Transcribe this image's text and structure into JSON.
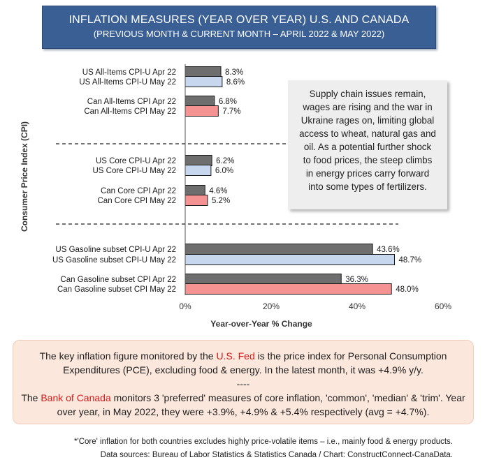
{
  "header": {
    "title": "INFLATION MEASURES (YEAR OVER YEAR) U.S. AND CANADA",
    "subtitle": "(PREVIOUS MONTH & CURRENT MONTH – APRIL 2022 & MAY 2022)"
  },
  "colors": {
    "apr": "#6e6e6e",
    "us_may": "#c7d7ee",
    "can_may": "#f59393"
  },
  "chart_data": {
    "type": "bar",
    "orientation": "horizontal",
    "xlabel": "Year-over-Year % Change",
    "ylabel": "Consumer Price Index (CPI)",
    "xlim": [
      0,
      60
    ],
    "xticks": [
      "0%",
      "20%",
      "40%",
      "60%"
    ],
    "grid": false,
    "categories": [
      "US All-Items CPI-U Apr 22",
      "US All-Items CPI-U May 22",
      "Can All-Items CPI Apr 22",
      "Can All-Items CPI May 22",
      "US Core CPI-U Apr 22",
      "US Core CPI-U May 22",
      "Can Core CPI Apr 22",
      "Can Core CPI May 22",
      "US Gasoline subset CPI-U Apr 22",
      "US Gasoline subset CPI-U May 22",
      "Can Gasoline subset CPI Apr 22",
      "Can Gasoline subset CPI May 22"
    ],
    "values": [
      8.3,
      8.6,
      6.8,
      7.7,
      6.2,
      6.0,
      4.6,
      5.2,
      43.6,
      48.7,
      36.3,
      48.0
    ],
    "value_labels": [
      "8.3%",
      "8.6%",
      "6.8%",
      "7.7%",
      "6.2%",
      "6.0%",
      "4.6%",
      "5.2%",
      "43.6%",
      "48.7%",
      "36.3%",
      "48.0%"
    ],
    "bar_colors": [
      "apr",
      "us_may",
      "apr",
      "can_may",
      "apr",
      "us_may",
      "apr",
      "can_may",
      "apr",
      "us_may",
      "apr",
      "can_may"
    ]
  },
  "note": {
    "lines": [
      "Supply chain issues remain,",
      "wages are rising and the war in",
      "Ukraine rages on, limiting global",
      "access to wheat, natural gas and",
      "oil. As a potential further shock",
      "to food prices, the steep climbs",
      "in energy prices carry forward",
      "into some types of  fertilizers."
    ]
  },
  "fed_box": {
    "p1_before": "The key inflation figure monitored by the ",
    "p1_red": "U.S. Fed",
    "p1_after": " is the price index for Personal Consumption Expenditures (PCE), excluding food & energy. In the latest month, it was +4.9% y/y.",
    "separator": "----",
    "p2_before": "The ",
    "p2_red": "Bank of Canada",
    "p2_after": " monitors 3 'preferred' measures of core inflation, 'common', 'median' & 'trim'. Year over year, in May 2022, they were +3.9%, +4.9% & +5.4% respectively (avg = +4.7%)."
  },
  "footnote": {
    "line1": "*'Core' inflation for both countries excludes highly price-volatile items – i.e., mainly food & energy products.",
    "line2": "Data sources: Bureau of Labor Statistics & Statistics Canada / Chart: ConstructConnect-CanaData."
  }
}
